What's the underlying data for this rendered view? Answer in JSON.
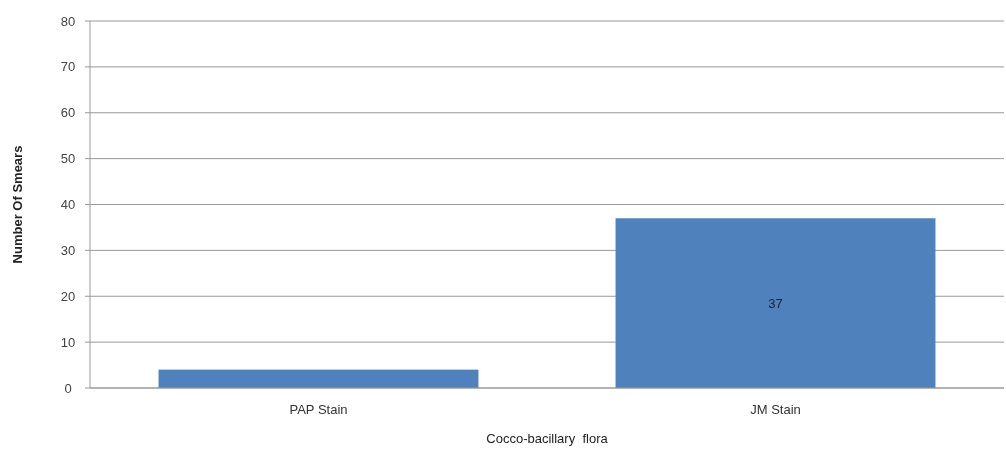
{
  "chart_data": {
    "type": "bar",
    "xlabel": "Cocco-bacillary  flora",
    "ylabel": "Number Of Smears",
    "categories": [
      "PAP Stain",
      "JM Stain"
    ],
    "series": [
      {
        "color": "#4f81bd",
        "values": [
          4,
          37
        ],
        "value_labels": [
          null,
          "37"
        ]
      }
    ],
    "ylim": [
      0,
      80
    ],
    "yticks": [
      0,
      10,
      20,
      30,
      40,
      50,
      60,
      70,
      80
    ],
    "grid": "y"
  }
}
